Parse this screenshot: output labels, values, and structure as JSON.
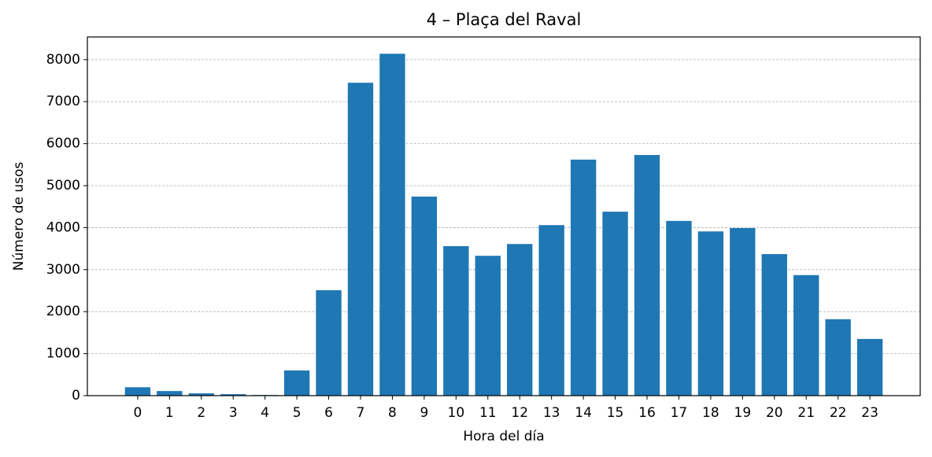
{
  "chart_data": {
    "type": "bar",
    "title": "4 – Plaça del Raval",
    "xlabel": "Hora del día",
    "ylabel": "Número de usos",
    "categories": [
      0,
      1,
      2,
      3,
      4,
      5,
      6,
      7,
      8,
      9,
      10,
      11,
      12,
      13,
      14,
      15,
      16,
      17,
      18,
      19,
      20,
      21,
      22,
      23
    ],
    "values": [
      200,
      110,
      55,
      35,
      15,
      600,
      2510,
      7450,
      8140,
      4740,
      3560,
      3330,
      3610,
      4060,
      5620,
      4380,
      5730,
      4160,
      3910,
      3990,
      3370,
      2870,
      1820,
      1350
    ],
    "color": "#1f77b4",
    "ylim": [
      0,
      8540
    ],
    "yticks": [
      0,
      1000,
      2000,
      3000,
      4000,
      5000,
      6000,
      7000,
      8000
    ],
    "grid": true
  }
}
